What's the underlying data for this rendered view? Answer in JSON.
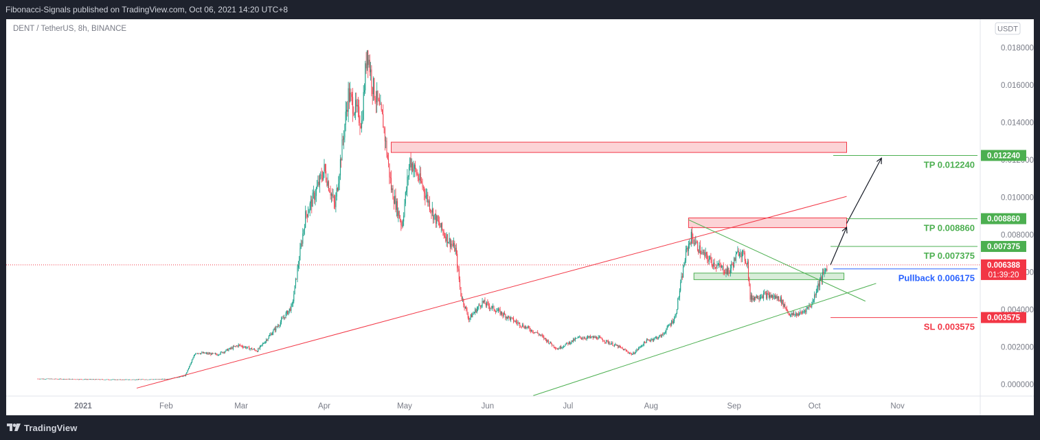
{
  "header": {
    "published_text": "Fibonacci-Signals published on TradingView.com, Oct 06, 2021 14:20 UTC+8"
  },
  "footer": {
    "brand": "TradingView"
  },
  "chart_data": {
    "type": "candlestick",
    "symbol_line": "DENT / TetherUS, 8h, BINANCE",
    "currency_badge": "USDT",
    "x_ticks": [
      "2021",
      "Feb",
      "Mar",
      "Apr",
      "May",
      "Jun",
      "Jul",
      "Aug",
      "Sep",
      "Oct",
      "Nov"
    ],
    "x_tick_dates": [
      "2021-01-01",
      "2021-02-01",
      "2021-03-01",
      "2021-04-01",
      "2021-05-01",
      "2021-06-01",
      "2021-07-01",
      "2021-08-01",
      "2021-09-01",
      "2021-10-01",
      "2021-11-01"
    ],
    "y_ticks": [
      "0.018000",
      "0.016000",
      "0.014000",
      "0.012000",
      "0.010000",
      "0.008000",
      "0.006000",
      "0.004000",
      "0.002000",
      "0.000000"
    ],
    "ylim": [
      -0.0006,
      0.0196
    ],
    "price_path": [
      [
        "2020-12-15",
        0.0003
      ],
      [
        "2021-01-15",
        0.00025
      ],
      [
        "2021-02-01",
        0.00028
      ],
      [
        "2021-02-08",
        0.00045
      ],
      [
        "2021-02-12",
        0.0017
      ],
      [
        "2021-02-20",
        0.0016
      ],
      [
        "2021-02-28",
        0.0021
      ],
      [
        "2021-03-07",
        0.0018
      ],
      [
        "2021-03-15",
        0.0032
      ],
      [
        "2021-03-20",
        0.0042
      ],
      [
        "2021-03-25",
        0.009
      ],
      [
        "2021-03-28",
        0.01
      ],
      [
        "2021-04-01",
        0.0115
      ],
      [
        "2021-04-05",
        0.0095
      ],
      [
        "2021-04-10",
        0.0155
      ],
      [
        "2021-04-15",
        0.014
      ],
      [
        "2021-04-17",
        0.018
      ],
      [
        "2021-04-19",
        0.016
      ],
      [
        "2021-04-23",
        0.014
      ],
      [
        "2021-04-26",
        0.0105
      ],
      [
        "2021-04-30",
        0.0085
      ],
      [
        "2021-05-03",
        0.012
      ],
      [
        "2021-05-08",
        0.0105
      ],
      [
        "2021-05-12",
        0.009
      ],
      [
        "2021-05-16",
        0.008
      ],
      [
        "2021-05-20",
        0.0072
      ],
      [
        "2021-05-22",
        0.0048
      ],
      [
        "2021-05-25",
        0.0035
      ],
      [
        "2021-05-30",
        0.0044
      ],
      [
        "2021-06-05",
        0.0039
      ],
      [
        "2021-06-12",
        0.0033
      ],
      [
        "2021-06-20",
        0.0027
      ],
      [
        "2021-06-27",
        0.0019
      ],
      [
        "2021-07-05",
        0.0025
      ],
      [
        "2021-07-12",
        0.0025
      ],
      [
        "2021-07-20",
        0.002
      ],
      [
        "2021-07-25",
        0.0016
      ],
      [
        "2021-07-30",
        0.0023
      ],
      [
        "2021-08-05",
        0.0026
      ],
      [
        "2021-08-10",
        0.0036
      ],
      [
        "2021-08-14",
        0.007
      ],
      [
        "2021-08-16",
        0.0079
      ],
      [
        "2021-08-20",
        0.007
      ],
      [
        "2021-08-25",
        0.0064
      ],
      [
        "2021-08-30",
        0.006
      ],
      [
        "2021-09-03",
        0.0072
      ],
      [
        "2021-09-06",
        0.0065
      ],
      [
        "2021-09-07",
        0.0046
      ],
      [
        "2021-09-12",
        0.0048
      ],
      [
        "2021-09-18",
        0.0046
      ],
      [
        "2021-09-22",
        0.0037
      ],
      [
        "2021-09-26",
        0.0038
      ],
      [
        "2021-09-30",
        0.0043
      ],
      [
        "2021-10-02",
        0.0052
      ],
      [
        "2021-10-04",
        0.0058
      ],
      [
        "2021-10-06",
        0.00638
      ]
    ],
    "zones": [
      {
        "name": "upper-resistance-zone",
        "kind": "resistance",
        "x_from": "2021-04-26",
        "x_to": "2021-10-13",
        "y_from": 0.0124,
        "y_to": 0.01295
      },
      {
        "name": "middle-resistance-zone",
        "kind": "resistance",
        "x_from": "2021-08-15",
        "x_to": "2021-10-13",
        "y_from": 0.00838,
        "y_to": 0.0089
      },
      {
        "name": "support-zone",
        "kind": "support",
        "x_from": "2021-08-17",
        "x_to": "2021-10-12",
        "y_from": 0.0056,
        "y_to": 0.00595
      }
    ],
    "trendlines": [
      {
        "name": "red-rising-trendline",
        "color": "#f23645",
        "from": [
          "2021-01-21",
          -0.0002
        ],
        "to": [
          "2021-10-13",
          0.01005
        ]
      },
      {
        "name": "green-rising-trendline",
        "color": "#4caf50",
        "from": [
          "2021-06-18",
          -0.0006
        ],
        "to": [
          "2021-10-24",
          0.0054
        ]
      },
      {
        "name": "green-falling-trendline",
        "color": "#4caf50",
        "from": [
          "2021-08-15",
          0.0088
        ],
        "to": [
          "2021-10-20",
          0.00445
        ]
      }
    ],
    "projection_arrows": [
      {
        "name": "arrow-to-tp2",
        "from": [
          "2021-10-07",
          0.0064
        ],
        "to": [
          "2021-10-13",
          0.0084
        ]
      },
      {
        "name": "arrow-to-tp1",
        "from": [
          "2021-10-13",
          0.0086
        ],
        "to": [
          "2021-10-26",
          0.0121
        ]
      }
    ],
    "levels": [
      {
        "name": "tp-level-1",
        "label": "TP 0.012240",
        "badge": "0.012240",
        "value": 0.01224,
        "color": "#4caf50",
        "label_color": "#4caf50",
        "x_from": "2021-10-08"
      },
      {
        "name": "tp-level-2",
        "label": "TP 0.008860",
        "badge": "0.008860",
        "value": 0.00886,
        "color": "#4caf50",
        "label_color": "#4caf50",
        "x_from": "2021-10-13"
      },
      {
        "name": "tp-level-3",
        "label": "TP 0.007375",
        "badge": "0.007375",
        "value": 0.007375,
        "color": "#4caf50",
        "label_color": "#4caf50",
        "x_from": "2021-10-07"
      },
      {
        "name": "pullback-level",
        "label": "Pullback 0.006175",
        "badge": "0.006175",
        "value": 0.006175,
        "color": "#2962ff",
        "label_color": "#2962ff",
        "x_from": "2021-10-08"
      },
      {
        "name": "sl-level",
        "label": "SL 0.003575",
        "badge": "0.003575",
        "value": 0.003575,
        "color": "#f23645",
        "label_color": "#f23645",
        "x_from": "2021-10-07"
      }
    ],
    "last_price": {
      "value": 0.006388,
      "label": "0.006388",
      "countdown": "01:39:20",
      "color": "#f23645"
    }
  }
}
